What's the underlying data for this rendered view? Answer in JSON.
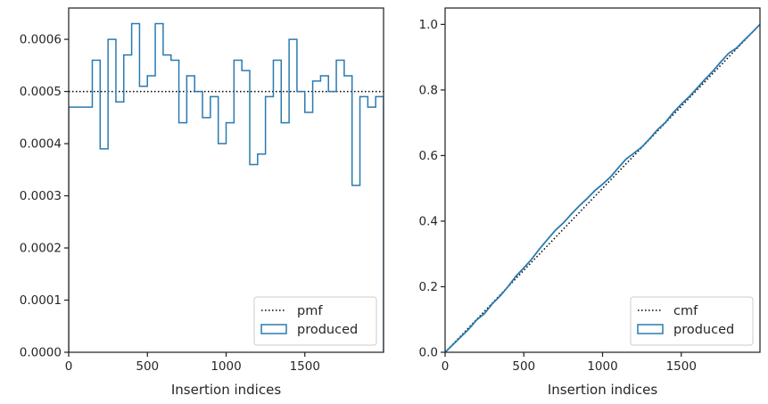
{
  "chart_data": [
    {
      "type": "histogram-step",
      "xlabel": "Insertion indices",
      "ylabel": "",
      "xlim": [
        0,
        2000
      ],
      "ylim": [
        0,
        0.00066
      ],
      "xticks": [
        0,
        500,
        1000,
        1500
      ],
      "xtick_labels": [
        "0",
        "500",
        "1000",
        "1500"
      ],
      "yticks": [
        0,
        0.0001,
        0.0002,
        0.0003,
        0.0004,
        0.0005,
        0.0006
      ],
      "ytick_labels": [
        "0.0000",
        "0.0001",
        "0.0002",
        "0.0003",
        "0.0004",
        "0.0005",
        "0.0006"
      ],
      "grid": false,
      "legend_position": "lower right",
      "legend": [
        "pmf",
        "produced"
      ],
      "series": [
        {
          "name": "pmf",
          "style": "dotted",
          "color": "#000000",
          "x": [
            0,
            2000
          ],
          "y": [
            0.0005,
            0.0005
          ]
        },
        {
          "name": "produced",
          "style": "step",
          "color": "#2a7ab0",
          "bin_width": 50,
          "bin_starts": [
            0,
            50,
            100,
            150,
            200,
            250,
            300,
            350,
            400,
            450,
            500,
            550,
            600,
            650,
            700,
            750,
            800,
            850,
            900,
            950,
            1000,
            1050,
            1100,
            1150,
            1200,
            1250,
            1300,
            1350,
            1400,
            1450,
            1500,
            1550,
            1600,
            1650,
            1700,
            1750,
            1800,
            1850,
            1900,
            1950
          ],
          "values": [
            0.00047,
            0.00047,
            0.00047,
            0.00056,
            0.00039,
            0.0006,
            0.00048,
            0.00057,
            0.00063,
            0.00051,
            0.00053,
            0.00063,
            0.00057,
            0.00056,
            0.00044,
            0.00053,
            0.0005,
            0.00045,
            0.00049,
            0.0004,
            0.00044,
            0.00056,
            0.00054,
            0.00036,
            0.00038,
            0.00049,
            0.00056,
            0.00044,
            0.0006,
            0.0005,
            0.00046,
            0.00052,
            0.00053,
            0.0005,
            0.00056,
            0.00053,
            0.00032,
            0.00049,
            0.00047,
            0.00049
          ]
        }
      ]
    },
    {
      "type": "line",
      "xlabel": "Insertion indices",
      "ylabel": "",
      "xlim": [
        0,
        2000
      ],
      "ylim": [
        0,
        1.05
      ],
      "xticks": [
        0,
        500,
        1000,
        1500
      ],
      "xtick_labels": [
        "0",
        "500",
        "1000",
        "1500"
      ],
      "yticks": [
        0,
        0.2,
        0.4,
        0.6,
        0.8,
        1.0
      ],
      "ytick_labels": [
        "0.0",
        "0.2",
        "0.4",
        "0.6",
        "0.8",
        "1.0"
      ],
      "grid": false,
      "legend_position": "lower right",
      "legend": [
        "cmf",
        "produced"
      ],
      "series": [
        {
          "name": "cmf",
          "style": "dotted",
          "color": "#000000",
          "x": [
            0,
            2000
          ],
          "y": [
            0,
            1
          ]
        },
        {
          "name": "produced",
          "style": "solid",
          "color": "#2a7ab0",
          "x": [
            0,
            50,
            100,
            150,
            200,
            250,
            300,
            350,
            400,
            450,
            500,
            550,
            600,
            650,
            700,
            750,
            800,
            850,
            900,
            950,
            1000,
            1050,
            1100,
            1150,
            1200,
            1250,
            1300,
            1350,
            1400,
            1450,
            1500,
            1550,
            1600,
            1650,
            1700,
            1750,
            1800,
            1850,
            1900,
            1950,
            2000
          ],
          "y": [
            0,
            0.0235,
            0.047,
            0.0705,
            0.0985,
            0.118,
            0.148,
            0.172,
            0.2005,
            0.232,
            0.2575,
            0.284,
            0.3155,
            0.344,
            0.372,
            0.394,
            0.4205,
            0.4455,
            0.468,
            0.4925,
            0.5125,
            0.5345,
            0.5625,
            0.5895,
            0.6075,
            0.6265,
            0.6515,
            0.6795,
            0.7015,
            0.7315,
            0.7565,
            0.7795,
            0.8055,
            0.832,
            0.857,
            0.885,
            0.9115,
            0.9275,
            0.952,
            0.9755,
            1.0
          ]
        }
      ]
    }
  ]
}
